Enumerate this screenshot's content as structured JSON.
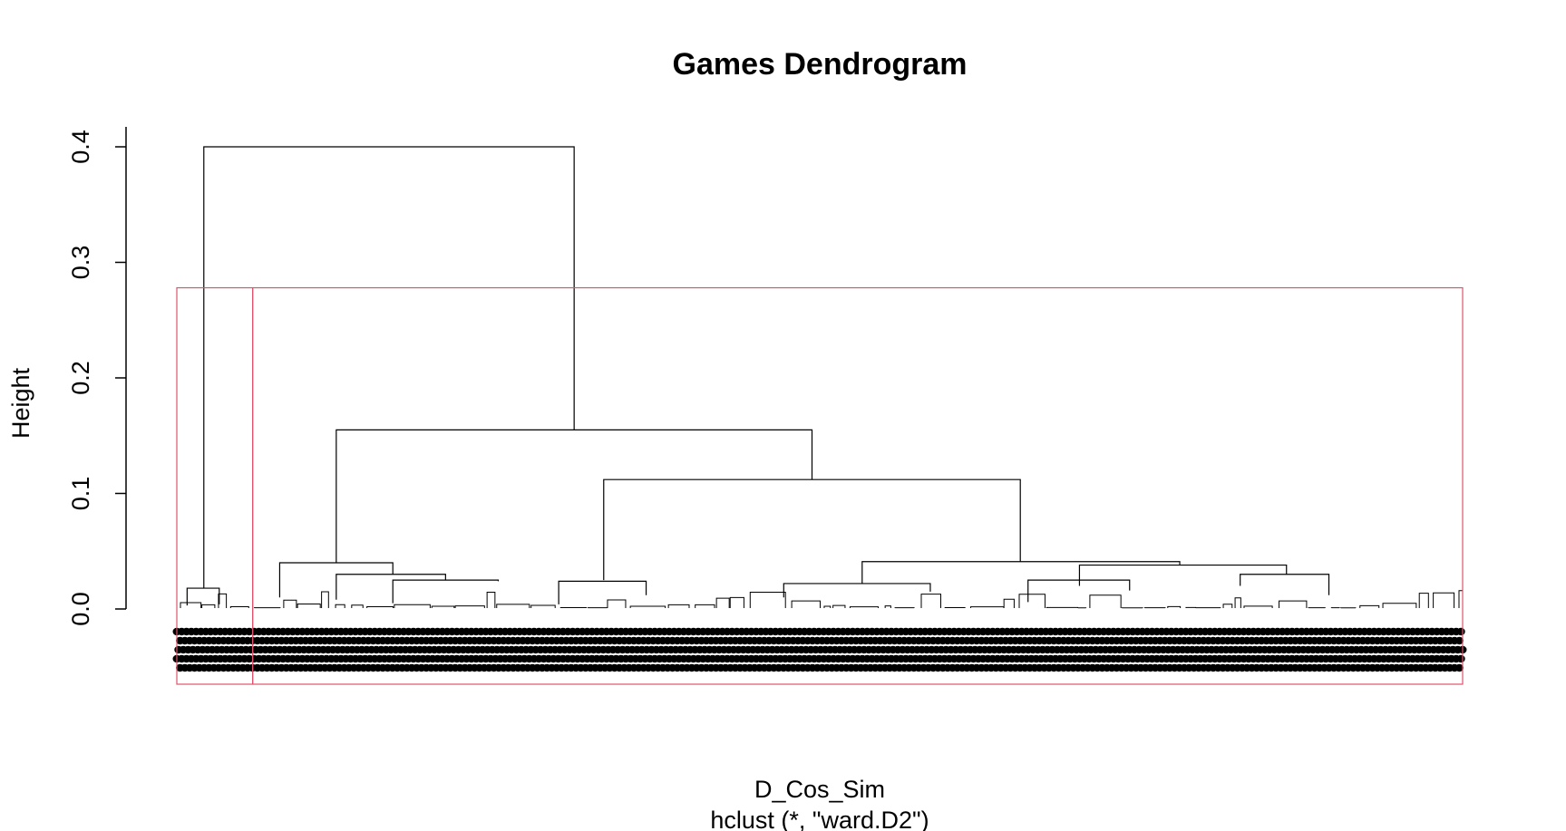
{
  "chart_data": {
    "type": "dendrogram",
    "title": "Games Dendrogram",
    "ylabel": "Height",
    "xlabel": "D_Cos_Sim",
    "sub": "hclust (*, \"ward.D2\")",
    "ylim": [
      0,
      0.4
    ],
    "yticks": [
      "0.0",
      "0.1",
      "0.2",
      "0.3",
      "0.4"
    ],
    "n_leaves": 800,
    "merges": [
      {
        "height": 0.4,
        "left_leaf_frac": 0.021,
        "right_leaf_frac": 0.309
      },
      {
        "height": 0.155,
        "left_leaf_frac": 0.124,
        "right_leaf_frac": 0.494
      },
      {
        "height": 0.112,
        "left_leaf_frac": 0.332,
        "right_leaf_frac": 0.656
      },
      {
        "height": 0.041,
        "left_leaf_frac": 0.533,
        "right_leaf_frac": 0.78
      },
      {
        "height": 0.038,
        "left_leaf_frac": 0.702,
        "right_leaf_frac": 0.863
      },
      {
        "height": 0.04,
        "left_leaf_frac": 0.08,
        "right_leaf_frac": 0.168
      },
      {
        "height": 0.03,
        "left_leaf_frac": 0.124,
        "right_leaf_frac": 0.209
      },
      {
        "height": 0.025,
        "left_leaf_frac": 0.168,
        "right_leaf_frac": 0.25
      },
      {
        "height": 0.024,
        "left_leaf_frac": 0.297,
        "right_leaf_frac": 0.365
      },
      {
        "height": 0.022,
        "left_leaf_frac": 0.472,
        "right_leaf_frac": 0.586
      },
      {
        "height": 0.025,
        "left_leaf_frac": 0.662,
        "right_leaf_frac": 0.741
      },
      {
        "height": 0.03,
        "left_leaf_frac": 0.827,
        "right_leaf_frac": 0.896
      },
      {
        "height": 0.018,
        "left_leaf_frac": 0.008,
        "right_leaf_frac": 0.033
      }
    ],
    "cut": {
      "k": 3,
      "height": 0.278,
      "color": "#DF536B",
      "cluster_bounds_frac": [
        0.0,
        0.059,
        1.0
      ]
    },
    "colors": {
      "tree": "#000000",
      "cut_rect": "#DF536B",
      "background": "#FFFFFF"
    }
  }
}
